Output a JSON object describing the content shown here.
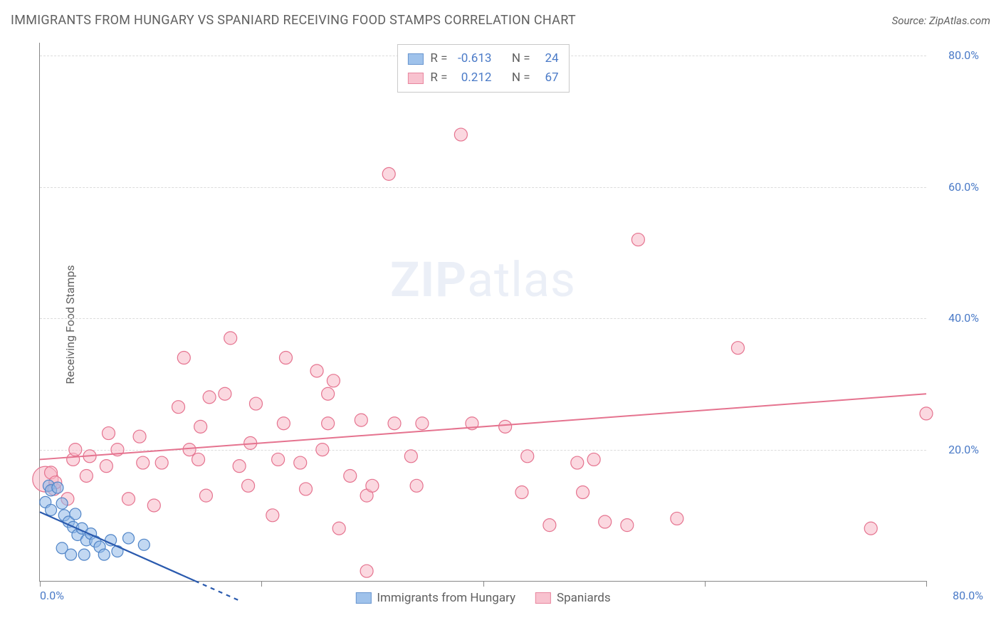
{
  "header": {
    "title": "IMMIGRANTS FROM HUNGARY VS SPANIARD RECEIVING FOOD STAMPS CORRELATION CHART",
    "source_label": "Source: ZipAtlas.com"
  },
  "watermark": {
    "bold": "ZIP",
    "light": "atlas"
  },
  "chart": {
    "type": "scatter",
    "y_axis_title": "Receiving Food Stamps",
    "background_color": "#ffffff",
    "grid_color": "#dcdcdc",
    "axis_color": "#888888",
    "tick_label_color": "#4a7ac7",
    "tick_fontsize": 16,
    "xlim": [
      0,
      80
    ],
    "ylim": [
      0,
      82
    ],
    "x_tick_positions": [
      0,
      20,
      40,
      60,
      80
    ],
    "x_tick_labels_shown": {
      "0": "0.0%",
      "80": "80.0%"
    },
    "y_gridlines": [
      20,
      40,
      60,
      80
    ],
    "y_tick_labels": {
      "20": "20.0%",
      "40": "40.0%",
      "60": "60.0%",
      "80": "80.0%"
    },
    "series": [
      {
        "id": "hungary",
        "label": "Immigrants from Hungary",
        "fill_color": "#8fb8e8",
        "fill_opacity": 0.55,
        "stroke_color": "#4f84c7",
        "marker_radius": 8,
        "R": "-0.613",
        "N": "24",
        "trend": {
          "x1": 0,
          "y1": 10.5,
          "x2": 14,
          "y2": 0,
          "dash_extend_to_x": 18,
          "color": "#2a5aae",
          "width": 2.2
        },
        "points": [
          [
            0.8,
            14.5
          ],
          [
            0.5,
            12.0
          ],
          [
            1.0,
            13.8
          ],
          [
            1.6,
            14.2
          ],
          [
            1.0,
            10.8
          ],
          [
            2.0,
            11.8
          ],
          [
            2.2,
            10.0
          ],
          [
            2.6,
            9.0
          ],
          [
            3.2,
            10.2
          ],
          [
            3.0,
            8.2
          ],
          [
            3.4,
            7.0
          ],
          [
            3.8,
            8.0
          ],
          [
            4.2,
            6.2
          ],
          [
            4.6,
            7.2
          ],
          [
            5.0,
            6.0
          ],
          [
            5.4,
            5.2
          ],
          [
            2.0,
            5.0
          ],
          [
            2.8,
            4.0
          ],
          [
            4.0,
            4.0
          ],
          [
            5.8,
            4.0
          ],
          [
            6.4,
            6.2
          ],
          [
            7.0,
            4.5
          ],
          [
            8.0,
            6.5
          ],
          [
            9.4,
            5.5
          ]
        ]
      },
      {
        "id": "spaniards",
        "label": "Spaniards",
        "fill_color": "#f7b8c7",
        "fill_opacity": 0.55,
        "stroke_color": "#e5738f",
        "marker_radius": 9,
        "R": "0.212",
        "N": "67",
        "trend": {
          "x1": 0,
          "y1": 18.5,
          "x2": 80,
          "y2": 28.5,
          "color": "#e5738f",
          "width": 2
        },
        "points": [
          [
            1.0,
            16.5
          ],
          [
            1.3,
            14.0
          ],
          [
            1.4,
            15.0
          ],
          [
            2.5,
            12.5
          ],
          [
            3.0,
            18.5
          ],
          [
            3.2,
            20.0
          ],
          [
            4.2,
            16.0
          ],
          [
            4.5,
            19.0
          ],
          [
            6.0,
            17.5
          ],
          [
            6.2,
            22.5
          ],
          [
            7.0,
            20.0
          ],
          [
            8.0,
            12.5
          ],
          [
            9.0,
            22.0
          ],
          [
            9.3,
            18.0
          ],
          [
            10.3,
            11.5
          ],
          [
            11.0,
            18.0
          ],
          [
            12.5,
            26.5
          ],
          [
            13.0,
            34.0
          ],
          [
            13.5,
            20.0
          ],
          [
            14.3,
            18.5
          ],
          [
            14.5,
            23.5
          ],
          [
            15.0,
            13.0
          ],
          [
            15.3,
            28.0
          ],
          [
            16.7,
            28.5
          ],
          [
            17.2,
            37.0
          ],
          [
            18.0,
            17.5
          ],
          [
            18.8,
            14.5
          ],
          [
            19.0,
            21.0
          ],
          [
            19.5,
            27.0
          ],
          [
            21.0,
            10.0
          ],
          [
            21.5,
            18.5
          ],
          [
            22.0,
            24.0
          ],
          [
            22.2,
            34.0
          ],
          [
            23.5,
            18.0
          ],
          [
            24.0,
            14.0
          ],
          [
            25.0,
            32.0
          ],
          [
            25.5,
            20.0
          ],
          [
            26.0,
            24.0
          ],
          [
            26.0,
            28.5
          ],
          [
            26.5,
            30.5
          ],
          [
            27.0,
            8.0
          ],
          [
            28.0,
            16.0
          ],
          [
            29.0,
            24.5
          ],
          [
            29.5,
            1.5
          ],
          [
            29.5,
            13.0
          ],
          [
            30.0,
            14.5
          ],
          [
            31.5,
            62.0
          ],
          [
            32.0,
            24.0
          ],
          [
            33.5,
            19.0
          ],
          [
            34.0,
            14.5
          ],
          [
            34.5,
            24.0
          ],
          [
            38.0,
            68.0
          ],
          [
            39.0,
            24.0
          ],
          [
            42.0,
            23.5
          ],
          [
            43.5,
            13.5
          ],
          [
            44.0,
            19.0
          ],
          [
            46.0,
            8.5
          ],
          [
            48.5,
            18.0
          ],
          [
            49.0,
            13.5
          ],
          [
            50.0,
            18.5
          ],
          [
            51.0,
            9.0
          ],
          [
            53.0,
            8.5
          ],
          [
            54.0,
            52.0
          ],
          [
            57.5,
            9.5
          ],
          [
            63.0,
            35.5
          ],
          [
            75.0,
            8.0
          ],
          [
            80.0,
            25.5
          ]
        ],
        "extra_large_point": {
          "x": 0.5,
          "y": 15.5,
          "radius": 18
        }
      }
    ],
    "series_legend_swatch_size": 22
  },
  "stats_legend": {
    "R_label": "R =",
    "N_label": "N ="
  }
}
